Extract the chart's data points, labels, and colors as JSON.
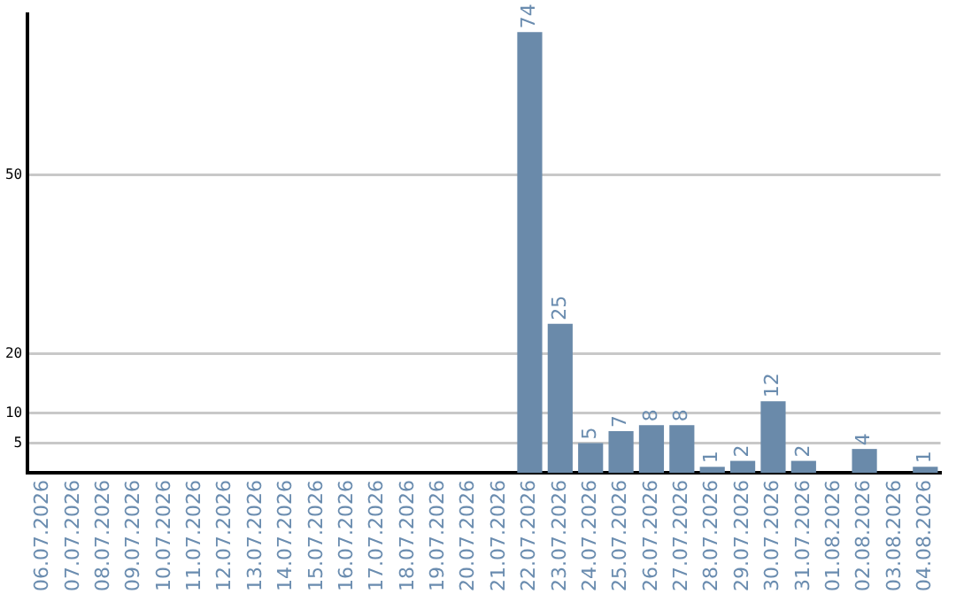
{
  "chart_data": {
    "type": "bar",
    "categories": [
      "06.07.2026",
      "07.07.2026",
      "08.07.2026",
      "09.07.2026",
      "10.07.2026",
      "11.07.2026",
      "12.07.2026",
      "13.07.2026",
      "14.07.2026",
      "15.07.2026",
      "16.07.2026",
      "17.07.2026",
      "18.07.2026",
      "19.07.2026",
      "20.07.2026",
      "21.07.2026",
      "22.07.2026",
      "23.07.2026",
      "24.07.2026",
      "25.07.2026",
      "26.07.2026",
      "27.07.2026",
      "28.07.2026",
      "29.07.2026",
      "30.07.2026",
      "31.07.2026",
      "01.08.2026",
      "02.08.2026",
      "03.08.2026",
      "04.08.2026"
    ],
    "values": [
      0,
      0,
      0,
      0,
      0,
      0,
      0,
      0,
      0,
      0,
      0,
      0,
      0,
      0,
      0,
      0,
      74,
      25,
      5,
      7,
      8,
      8,
      1,
      2,
      12,
      2,
      0,
      4,
      0,
      1
    ],
    "value_labels": [
      null,
      null,
      null,
      null,
      null,
      null,
      null,
      null,
      null,
      null,
      null,
      null,
      null,
      null,
      null,
      null,
      "74",
      "25",
      "5",
      "7",
      "8",
      "8",
      "1",
      "2",
      "12",
      "2",
      null,
      "4",
      null,
      "1"
    ],
    "color": "#6a8aaa",
    "ylim": [
      0,
      77
    ],
    "yticks": [
      5,
      10,
      20,
      50
    ],
    "grid": "y",
    "legend": false
  }
}
